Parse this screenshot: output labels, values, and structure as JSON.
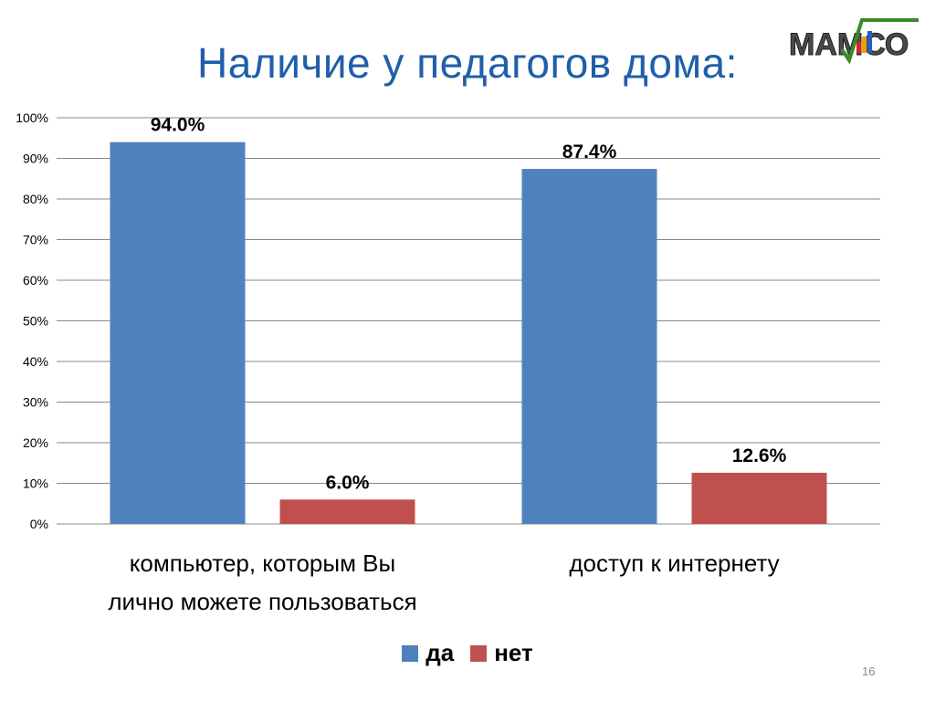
{
  "slide": {
    "title": "Наличие у педагогов дома:",
    "logo_text": "МАМСО",
    "slide_number": "16"
  },
  "colors": {
    "title": "#1f5faa",
    "series_yes": "#4f81bd",
    "series_no": "#c0504d",
    "grid": "#888888"
  },
  "chart_data": {
    "type": "bar",
    "categories": [
      [
        "компьютер, которым  Вы",
        "лично можете пользоваться"
      ],
      [
        "доступ к интернету"
      ]
    ],
    "series": [
      {
        "name": "да",
        "values": [
          94.0,
          87.4
        ],
        "labels": [
          "94.0%",
          "87.4%"
        ],
        "color": "#4f81bd"
      },
      {
        "name": "нет",
        "values": [
          6.0,
          12.6
        ],
        "labels": [
          "6.0%",
          "12.6%"
        ],
        "color": "#c0504d"
      }
    ],
    "ylim": [
      0,
      100
    ],
    "yticks": [
      "0%",
      "10%",
      "20%",
      "30%",
      "40%",
      "50%",
      "60%",
      "70%",
      "80%",
      "90%",
      "100%"
    ],
    "grid": true,
    "legend_position": "bottom"
  }
}
